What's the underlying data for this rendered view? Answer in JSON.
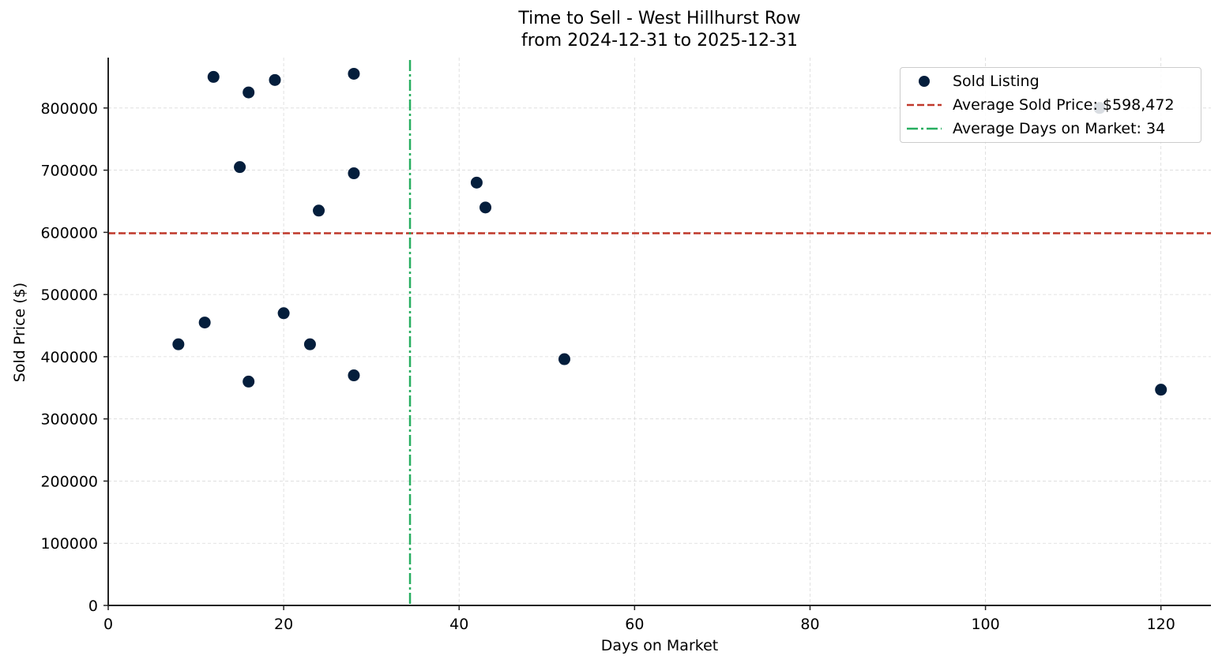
{
  "chart_data": {
    "type": "scatter",
    "title": "Time to Sell - West Hillhurst Row",
    "subtitle": "from 2024-12-31 to 2025-12-31",
    "xlabel": "Days on Market",
    "ylabel": "Sold Price ($)",
    "xlim": [
      0,
      125.7
    ],
    "ylim": [
      0,
      881000
    ],
    "xticks": [
      0,
      20,
      40,
      60,
      80,
      100,
      120
    ],
    "yticks": [
      0,
      100000,
      200000,
      300000,
      400000,
      500000,
      600000,
      700000,
      800000
    ],
    "grid": true,
    "legend_position": "upper right",
    "legend": [
      {
        "label": "Sold Listing",
        "type": "marker",
        "color": "#041e3c"
      },
      {
        "label": "Average Sold Price: $598,472",
        "type": "dashed-line",
        "color": "#c0392b"
      },
      {
        "label": "Average Days on Market: 34",
        "type": "dashdot-line",
        "color": "#27ae60"
      }
    ],
    "series": [
      {
        "name": "Sold Listing",
        "color": "#041e3c",
        "points": [
          {
            "x": 12,
            "y": 850000
          },
          {
            "x": 16,
            "y": 825000
          },
          {
            "x": 19,
            "y": 845000
          },
          {
            "x": 28,
            "y": 855000
          },
          {
            "x": 15,
            "y": 705000
          },
          {
            "x": 28,
            "y": 695000
          },
          {
            "x": 24,
            "y": 635000
          },
          {
            "x": 42,
            "y": 680000
          },
          {
            "x": 43,
            "y": 640000
          },
          {
            "x": 20,
            "y": 470000
          },
          {
            "x": 11,
            "y": 455000
          },
          {
            "x": 8,
            "y": 420000
          },
          {
            "x": 23,
            "y": 420000
          },
          {
            "x": 16,
            "y": 360000
          },
          {
            "x": 28,
            "y": 370000
          },
          {
            "x": 52,
            "y": 396000
          },
          {
            "x": 120,
            "y": 347000
          },
          {
            "x": 113,
            "y": 800000
          }
        ]
      }
    ],
    "reference_lines": [
      {
        "name": "Average Sold Price",
        "orientation": "horizontal",
        "value": 598472,
        "color": "#c0392b",
        "style": "dashed"
      },
      {
        "name": "Average Days on Market",
        "orientation": "vertical",
        "value": 34.4,
        "color": "#27ae60",
        "style": "dashdot"
      }
    ]
  }
}
